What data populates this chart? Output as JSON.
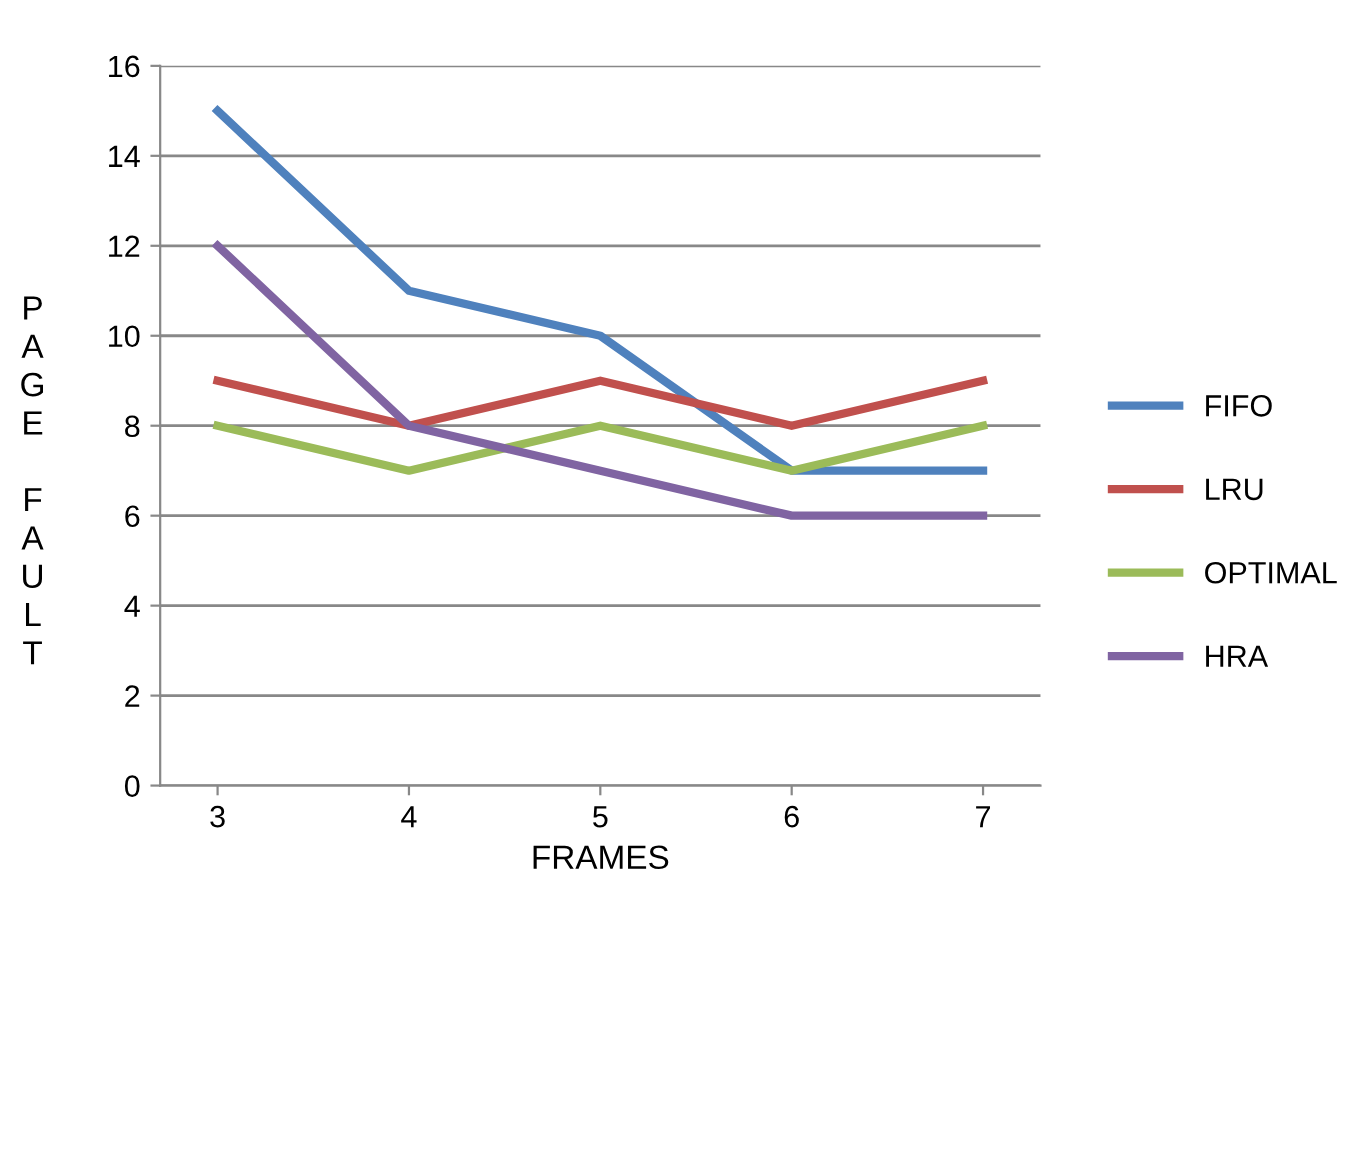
{
  "chart_data": {
    "type": "line",
    "xlabel": "FRAMES",
    "ylabel": "PAGE FAULT",
    "categories": [
      "3",
      "4",
      "5",
      "6",
      "7"
    ],
    "series": [
      {
        "name": "FIFO",
        "color": "#4f81bd",
        "values": [
          15,
          11,
          10,
          7,
          7
        ]
      },
      {
        "name": "LRU",
        "color": "#c0504d",
        "values": [
          9,
          8,
          9,
          8,
          9
        ]
      },
      {
        "name": "OPTIMAL",
        "color": "#9bbb59",
        "values": [
          8,
          7,
          8,
          7,
          8
        ]
      },
      {
        "name": "HRA",
        "color": "#8064a2",
        "values": [
          12,
          8,
          7,
          6,
          6
        ]
      }
    ],
    "ylim": [
      0,
      16
    ],
    "yticks": [
      0,
      2,
      4,
      6,
      8,
      10,
      12,
      14,
      16
    ],
    "grid": "y",
    "legend": "right",
    "marker": "none",
    "line_style": "solid"
  }
}
